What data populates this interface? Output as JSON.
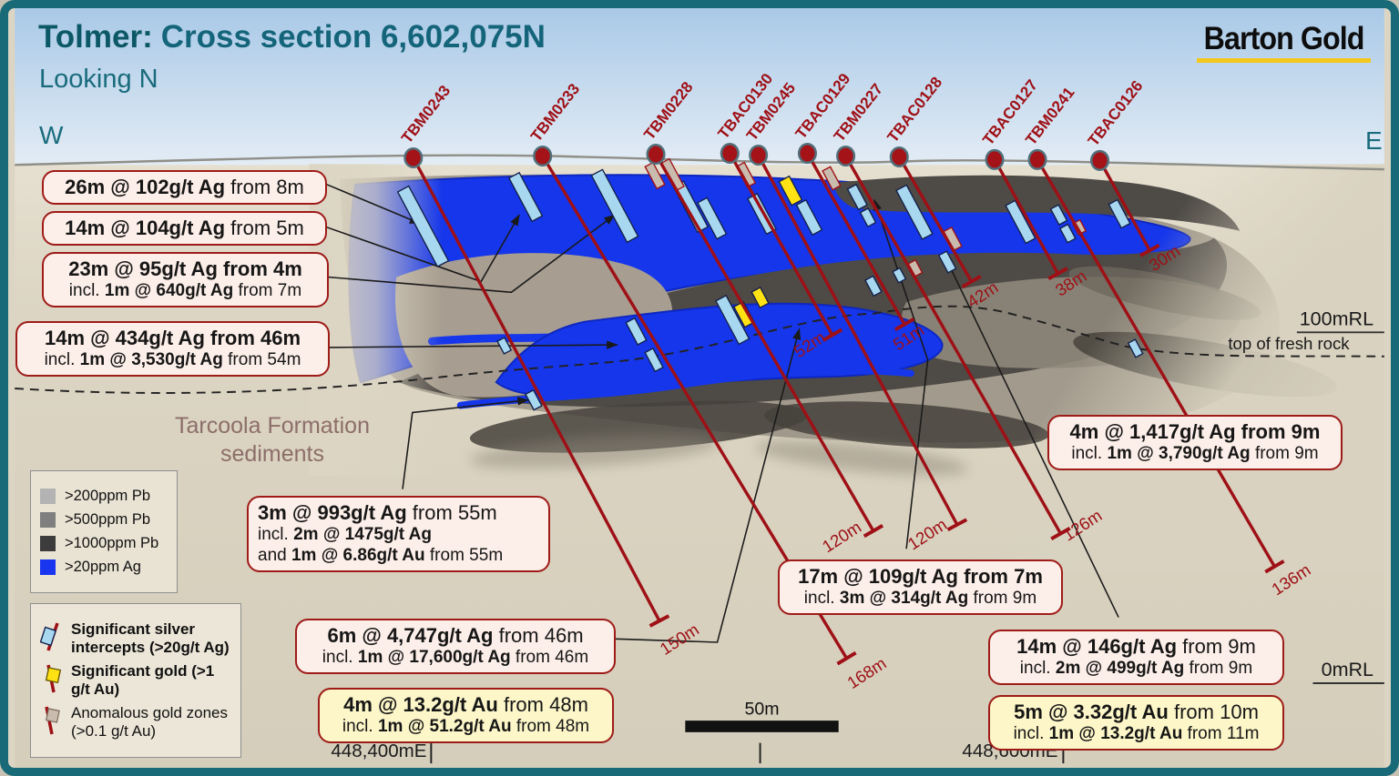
{
  "header": {
    "title_prefix": "Tolmer:",
    "title_rest": "Cross section 6,602,075N",
    "subtitle": "Looking N",
    "logo": "Barton Gold",
    "direction_left": "W",
    "direction_right": "E"
  },
  "annotations": {
    "formation_line1": "Tarcoola Formation",
    "formation_line2": "sediments",
    "fresh_rock": "top of fresh rock",
    "rl_100": "100mRL",
    "rl_0": "0mRL",
    "easting_left": "448,400mE",
    "easting_right": "448,600mE",
    "scale_label": "50m"
  },
  "palette": {
    "border_teal": "#186a79",
    "title_teal": "#0c5866",
    "trace_red": "#9e1016",
    "silver_intercept": "#a8d8f0",
    "gold_intercept": "#ffe214",
    "anomalous_gold": "#c9bcae",
    "ag_blue": "#1536ea",
    "logo_gold": "#f3c71d"
  },
  "legend_grades": {
    "items": [
      {
        "label": ">200ppm Pb",
        "color": "#b3b3b3"
      },
      {
        "label": ">500ppm Pb",
        "color": "#7f7f7f"
      },
      {
        "label": ">1000ppm Pb",
        "color": "#3c3c3c"
      },
      {
        "label": ">20ppm Ag",
        "color": "#1a35f0"
      }
    ]
  },
  "legend_symbols": {
    "items": [
      {
        "label": "Significant silver intercepts (>20g/t Ag)",
        "icon": "silver-intercept-icon",
        "color": "#a8d8f0"
      },
      {
        "label": "Significant gold (>1 g/t Au)",
        "icon": "gold-intercept-icon",
        "color": "#ffe214"
      },
      {
        "label": "Anomalous gold zones (>0.1 g/t Au)",
        "icon": "anomalous-gold-icon",
        "color": "#c9bcae"
      }
    ]
  },
  "holes": [
    {
      "name": "TBM0243",
      "depth_label": "150m"
    },
    {
      "name": "TBM0233",
      "depth_label": "168m"
    },
    {
      "name": "TBM0228",
      "depth_label": "120m"
    },
    {
      "name": "TBAC0130",
      "depth_label": "52m"
    },
    {
      "name": "TBM0245",
      "depth_label": "120m"
    },
    {
      "name": "TBAC0129",
      "depth_label": "51m"
    },
    {
      "name": "TBM0227",
      "depth_label": "126m"
    },
    {
      "name": "TBAC0128",
      "depth_label": "42m"
    },
    {
      "name": "TBAC0127",
      "depth_label": "38m"
    },
    {
      "name": "TBM0241",
      "depth_label": "136m"
    },
    {
      "name": "TBAC0126",
      "depth_label": "30m"
    }
  ],
  "callouts": [
    {
      "id": "c1",
      "variant": "pink",
      "lines": [
        [
          {
            "t": "26m @ 102g/t Ag",
            "b": true
          },
          {
            "t": " from 8m",
            "b": false
          }
        ]
      ]
    },
    {
      "id": "c2",
      "variant": "pink",
      "lines": [
        [
          {
            "t": "14m @ 104g/t Ag",
            "b": true
          },
          {
            "t": " from 5m",
            "b": false
          }
        ]
      ]
    },
    {
      "id": "c3",
      "variant": "pink",
      "lines": [
        [
          {
            "t": "23m @ 95g/t Ag from 4m",
            "b": true
          }
        ],
        [
          {
            "t": "incl. ",
            "b": false
          },
          {
            "t": "1m @ 640g/t Ag",
            "b": true
          },
          {
            "t": " from 7m",
            "b": false
          }
        ]
      ]
    },
    {
      "id": "c4",
      "variant": "pink",
      "lines": [
        [
          {
            "t": "14m @ 434g/t Ag from 46m",
            "b": true
          }
        ],
        [
          {
            "t": "incl. ",
            "b": false
          },
          {
            "t": "1m @ 3,530g/t Ag",
            "b": true
          },
          {
            "t": " from 54m",
            "b": false
          }
        ]
      ]
    },
    {
      "id": "c5",
      "variant": "pink",
      "lines": [
        [
          {
            "t": "3m @ 993g/t Ag",
            "b": true
          },
          {
            "t": " from 55m",
            "b": false
          }
        ],
        [
          {
            "t": "incl. ",
            "b": false
          },
          {
            "t": "2m @ 1475g/t Ag",
            "b": true
          }
        ],
        [
          {
            "t": "and ",
            "b": false
          },
          {
            "t": "1m @ 6.86g/t Au",
            "b": true
          },
          {
            "t": " from 55m",
            "b": false
          }
        ]
      ]
    },
    {
      "id": "c6",
      "variant": "pink",
      "lines": [
        [
          {
            "t": "6m @ 4,747g/t Ag",
            "b": true
          },
          {
            "t": " from 46m",
            "b": false
          }
        ],
        [
          {
            "t": "incl. ",
            "b": false
          },
          {
            "t": "1m @ 17,600g/t Ag",
            "b": true
          },
          {
            "t": " from 46m",
            "b": false
          }
        ]
      ]
    },
    {
      "id": "c7",
      "variant": "gold",
      "lines": [
        [
          {
            "t": "4m @ 13.2g/t Au",
            "b": true
          },
          {
            "t": " from 48m",
            "b": false
          }
        ],
        [
          {
            "t": "incl. ",
            "b": false
          },
          {
            "t": "1m @ 51.2g/t Au",
            "b": true
          },
          {
            "t": " from 48m",
            "b": false
          }
        ]
      ]
    },
    {
      "id": "c8",
      "variant": "pink",
      "lines": [
        [
          {
            "t": "17m @ 109g/t Ag from 7m",
            "b": true
          }
        ],
        [
          {
            "t": "incl. ",
            "b": false
          },
          {
            "t": "3m @ 314g/t Ag",
            "b": true
          },
          {
            "t": " from 9m",
            "b": false
          }
        ]
      ]
    },
    {
      "id": "c9",
      "variant": "pink",
      "lines": [
        [
          {
            "t": "4m @ 1,417g/t Ag from 9m",
            "b": true
          }
        ],
        [
          {
            "t": "incl. ",
            "b": false
          },
          {
            "t": "1m @ 3,790g/t Ag",
            "b": true
          },
          {
            "t": " from 9m",
            "b": false
          }
        ]
      ]
    },
    {
      "id": "c10",
      "variant": "pink",
      "lines": [
        [
          {
            "t": "14m @ 146g/t Ag",
            "b": true
          },
          {
            "t": " from 9m",
            "b": false
          }
        ],
        [
          {
            "t": "incl. ",
            "b": false
          },
          {
            "t": "2m @ 499g/t Ag",
            "b": true
          },
          {
            "t": " from 9m",
            "b": false
          }
        ]
      ]
    },
    {
      "id": "c11",
      "variant": "gold",
      "lines": [
        [
          {
            "t": "5m @ 3.32g/t Au",
            "b": true
          },
          {
            "t": " from 10m",
            "b": false
          }
        ],
        [
          {
            "t": "incl. ",
            "b": false
          },
          {
            "t": "1m @ 13.2g/t Au",
            "b": true
          },
          {
            "t": " from 11m",
            "b": false
          }
        ]
      ]
    }
  ]
}
